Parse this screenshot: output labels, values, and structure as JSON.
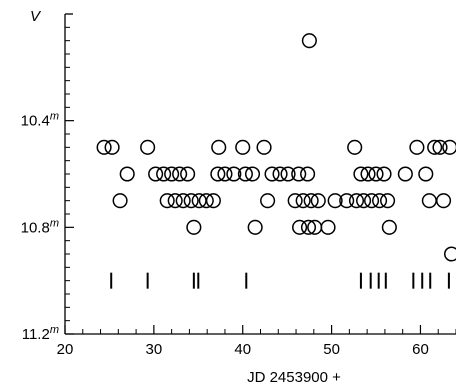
{
  "chart_data": {
    "type": "scatter",
    "title": "",
    "ylabel": "V",
    "xlabel": "JD 2453900 +",
    "xlim": [
      20,
      64
    ],
    "ylim": [
      11.2,
      10.0
    ],
    "y_inverted": true,
    "x_ticks": [
      20,
      30,
      40,
      50,
      60
    ],
    "x_tick_labels": [
      "20",
      "30",
      "40",
      "50",
      "60"
    ],
    "y_ticks": [
      10.4,
      10.8,
      11.2
    ],
    "y_tick_labels": [
      {
        "value": "10.4",
        "unit": "m"
      },
      {
        "value": "10.8",
        "unit": "m"
      },
      {
        "value": "11.2",
        "unit": "m"
      }
    ],
    "grid": false,
    "legend": "none",
    "points": [
      {
        "x": 24.4,
        "y": 10.5
      },
      {
        "x": 25.3,
        "y": 10.5
      },
      {
        "x": 26.2,
        "y": 10.7
      },
      {
        "x": 27.0,
        "y": 10.6
      },
      {
        "x": 29.3,
        "y": 10.5
      },
      {
        "x": 30.2,
        "y": 10.6
      },
      {
        "x": 31.1,
        "y": 10.6
      },
      {
        "x": 31.5,
        "y": 10.7
      },
      {
        "x": 32.0,
        "y": 10.6
      },
      {
        "x": 32.4,
        "y": 10.7
      },
      {
        "x": 32.9,
        "y": 10.6
      },
      {
        "x": 33.3,
        "y": 10.7
      },
      {
        "x": 33.8,
        "y": 10.6
      },
      {
        "x": 34.2,
        "y": 10.7
      },
      {
        "x": 34.5,
        "y": 10.8
      },
      {
        "x": 35.1,
        "y": 10.7
      },
      {
        "x": 35.9,
        "y": 10.7
      },
      {
        "x": 36.7,
        "y": 10.7
      },
      {
        "x": 37.2,
        "y": 10.6
      },
      {
        "x": 37.3,
        "y": 10.5
      },
      {
        "x": 38.0,
        "y": 10.6
      },
      {
        "x": 39.0,
        "y": 10.6
      },
      {
        "x": 40.0,
        "y": 10.5
      },
      {
        "x": 40.3,
        "y": 10.6
      },
      {
        "x": 41.1,
        "y": 10.6
      },
      {
        "x": 41.4,
        "y": 10.8
      },
      {
        "x": 42.4,
        "y": 10.5
      },
      {
        "x": 42.8,
        "y": 10.7
      },
      {
        "x": 43.3,
        "y": 10.6
      },
      {
        "x": 44.2,
        "y": 10.6
      },
      {
        "x": 45.1,
        "y": 10.6
      },
      {
        "x": 45.9,
        "y": 10.7
      },
      {
        "x": 46.3,
        "y": 10.6
      },
      {
        "x": 46.4,
        "y": 10.8
      },
      {
        "x": 46.8,
        "y": 10.7
      },
      {
        "x": 47.3,
        "y": 10.6
      },
      {
        "x": 47.4,
        "y": 10.8
      },
      {
        "x": 47.5,
        "y": 10.1
      },
      {
        "x": 47.7,
        "y": 10.7
      },
      {
        "x": 48.1,
        "y": 10.8
      },
      {
        "x": 48.5,
        "y": 10.7
      },
      {
        "x": 49.6,
        "y": 10.8
      },
      {
        "x": 50.4,
        "y": 10.7
      },
      {
        "x": 51.7,
        "y": 10.7
      },
      {
        "x": 52.6,
        "y": 10.5
      },
      {
        "x": 52.8,
        "y": 10.7
      },
      {
        "x": 53.3,
        "y": 10.6
      },
      {
        "x": 53.6,
        "y": 10.7
      },
      {
        "x": 54.1,
        "y": 10.6
      },
      {
        "x": 54.5,
        "y": 10.7
      },
      {
        "x": 55.0,
        "y": 10.6
      },
      {
        "x": 55.4,
        "y": 10.7
      },
      {
        "x": 55.9,
        "y": 10.6
      },
      {
        "x": 56.3,
        "y": 10.7
      },
      {
        "x": 56.5,
        "y": 10.8
      },
      {
        "x": 58.3,
        "y": 10.6
      },
      {
        "x": 59.6,
        "y": 10.5
      },
      {
        "x": 60.6,
        "y": 10.6
      },
      {
        "x": 61.0,
        "y": 10.7
      },
      {
        "x": 61.6,
        "y": 10.5
      },
      {
        "x": 62.2,
        "y": 10.5
      },
      {
        "x": 62.6,
        "y": 10.7
      },
      {
        "x": 63.3,
        "y": 10.5
      },
      {
        "x": 63.5,
        "y": 10.9
      }
    ],
    "observation_markers": {
      "y": 11.0,
      "x": [
        25.2,
        29.3,
        34.5,
        35.0,
        40.4,
        53.3,
        54.4,
        55.3,
        56.1,
        59.2,
        60.2,
        61.1,
        63.2
      ]
    }
  }
}
